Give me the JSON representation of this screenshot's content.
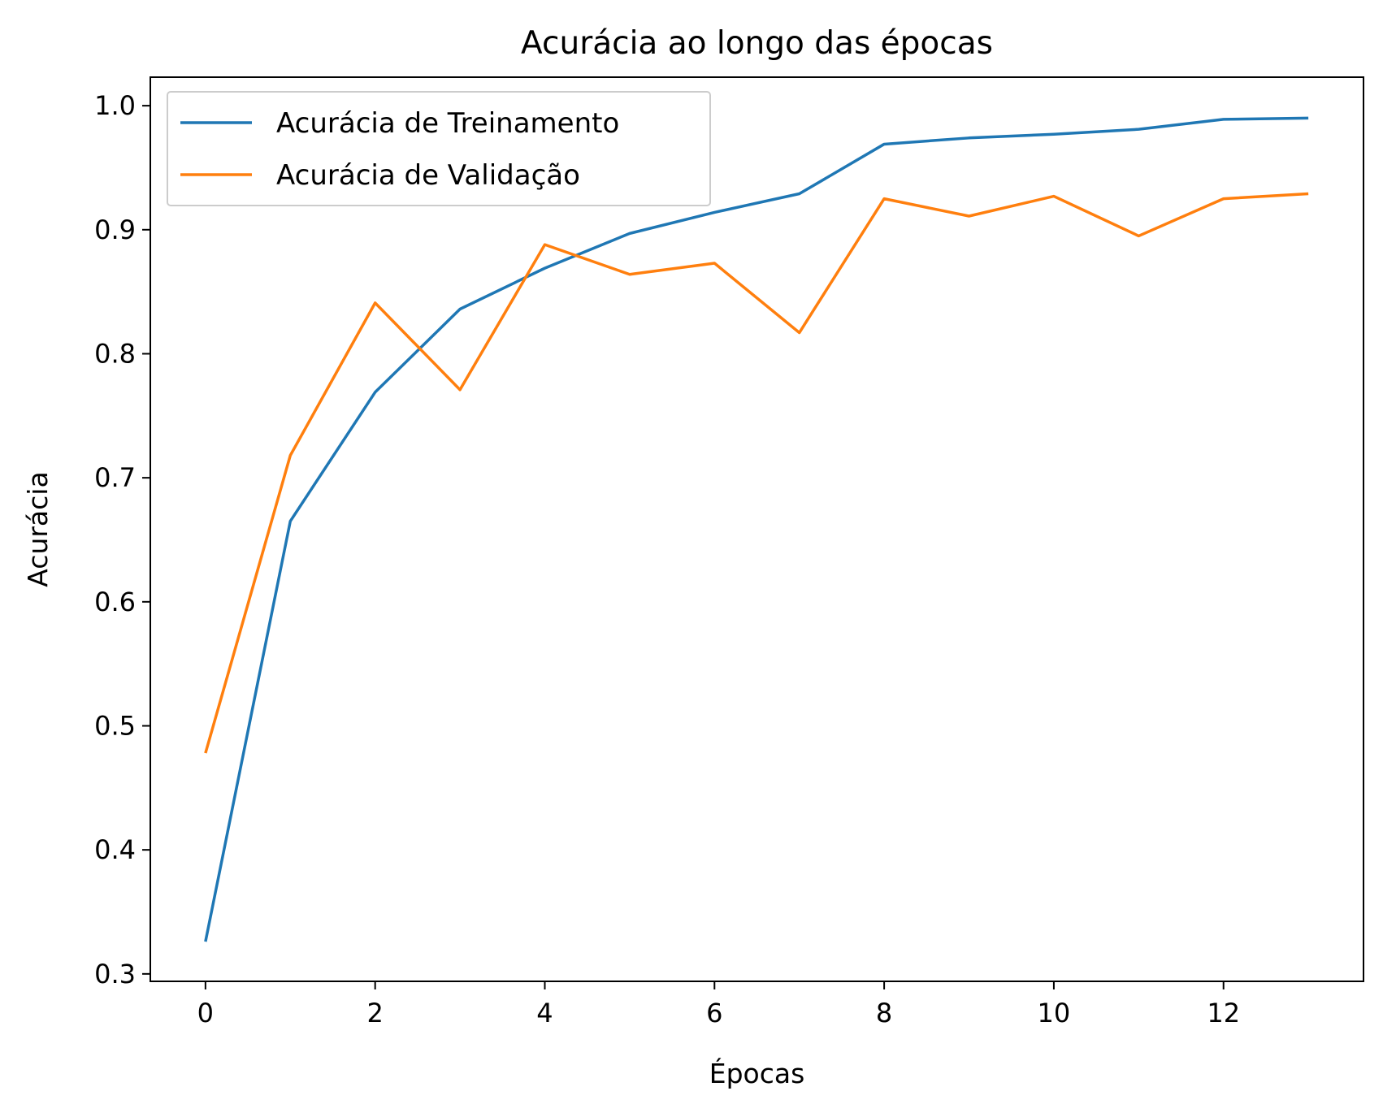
{
  "chart_data": {
    "type": "line",
    "title": "Acurácia ao longo das épocas",
    "xlabel": "Épocas",
    "ylabel": "Acurácia",
    "xlim": [
      -0.65,
      13.65
    ],
    "ylim": [
      0.294,
      1.023
    ],
    "xticks": [
      0,
      2,
      4,
      6,
      8,
      10,
      12
    ],
    "xtick_labels": [
      "0",
      "2",
      "4",
      "6",
      "8",
      "10",
      "12"
    ],
    "yticks": [
      0.3,
      0.4,
      0.5,
      0.6,
      0.7,
      0.8,
      0.9,
      1.0
    ],
    "ytick_labels": [
      "0.3",
      "0.4",
      "0.5",
      "0.6",
      "0.7",
      "0.8",
      "0.9",
      "1.0"
    ],
    "grid": false,
    "legend_position": "top-left",
    "x": [
      0,
      1,
      2,
      3,
      4,
      5,
      6,
      7,
      8,
      9,
      10,
      11,
      12,
      13
    ],
    "series": [
      {
        "name": "Acurácia de Treinamento",
        "color": "#1f77b4",
        "values": [
          0.326,
          0.665,
          0.769,
          0.836,
          0.869,
          0.897,
          0.914,
          0.929,
          0.969,
          0.974,
          0.977,
          0.981,
          0.989,
          0.99
        ]
      },
      {
        "name": "Acurácia de Validação",
        "color": "#ff7f0e",
        "values": [
          0.478,
          0.718,
          0.841,
          0.771,
          0.888,
          0.864,
          0.873,
          0.817,
          0.925,
          0.911,
          0.927,
          0.895,
          0.925,
          0.929
        ]
      }
    ]
  }
}
